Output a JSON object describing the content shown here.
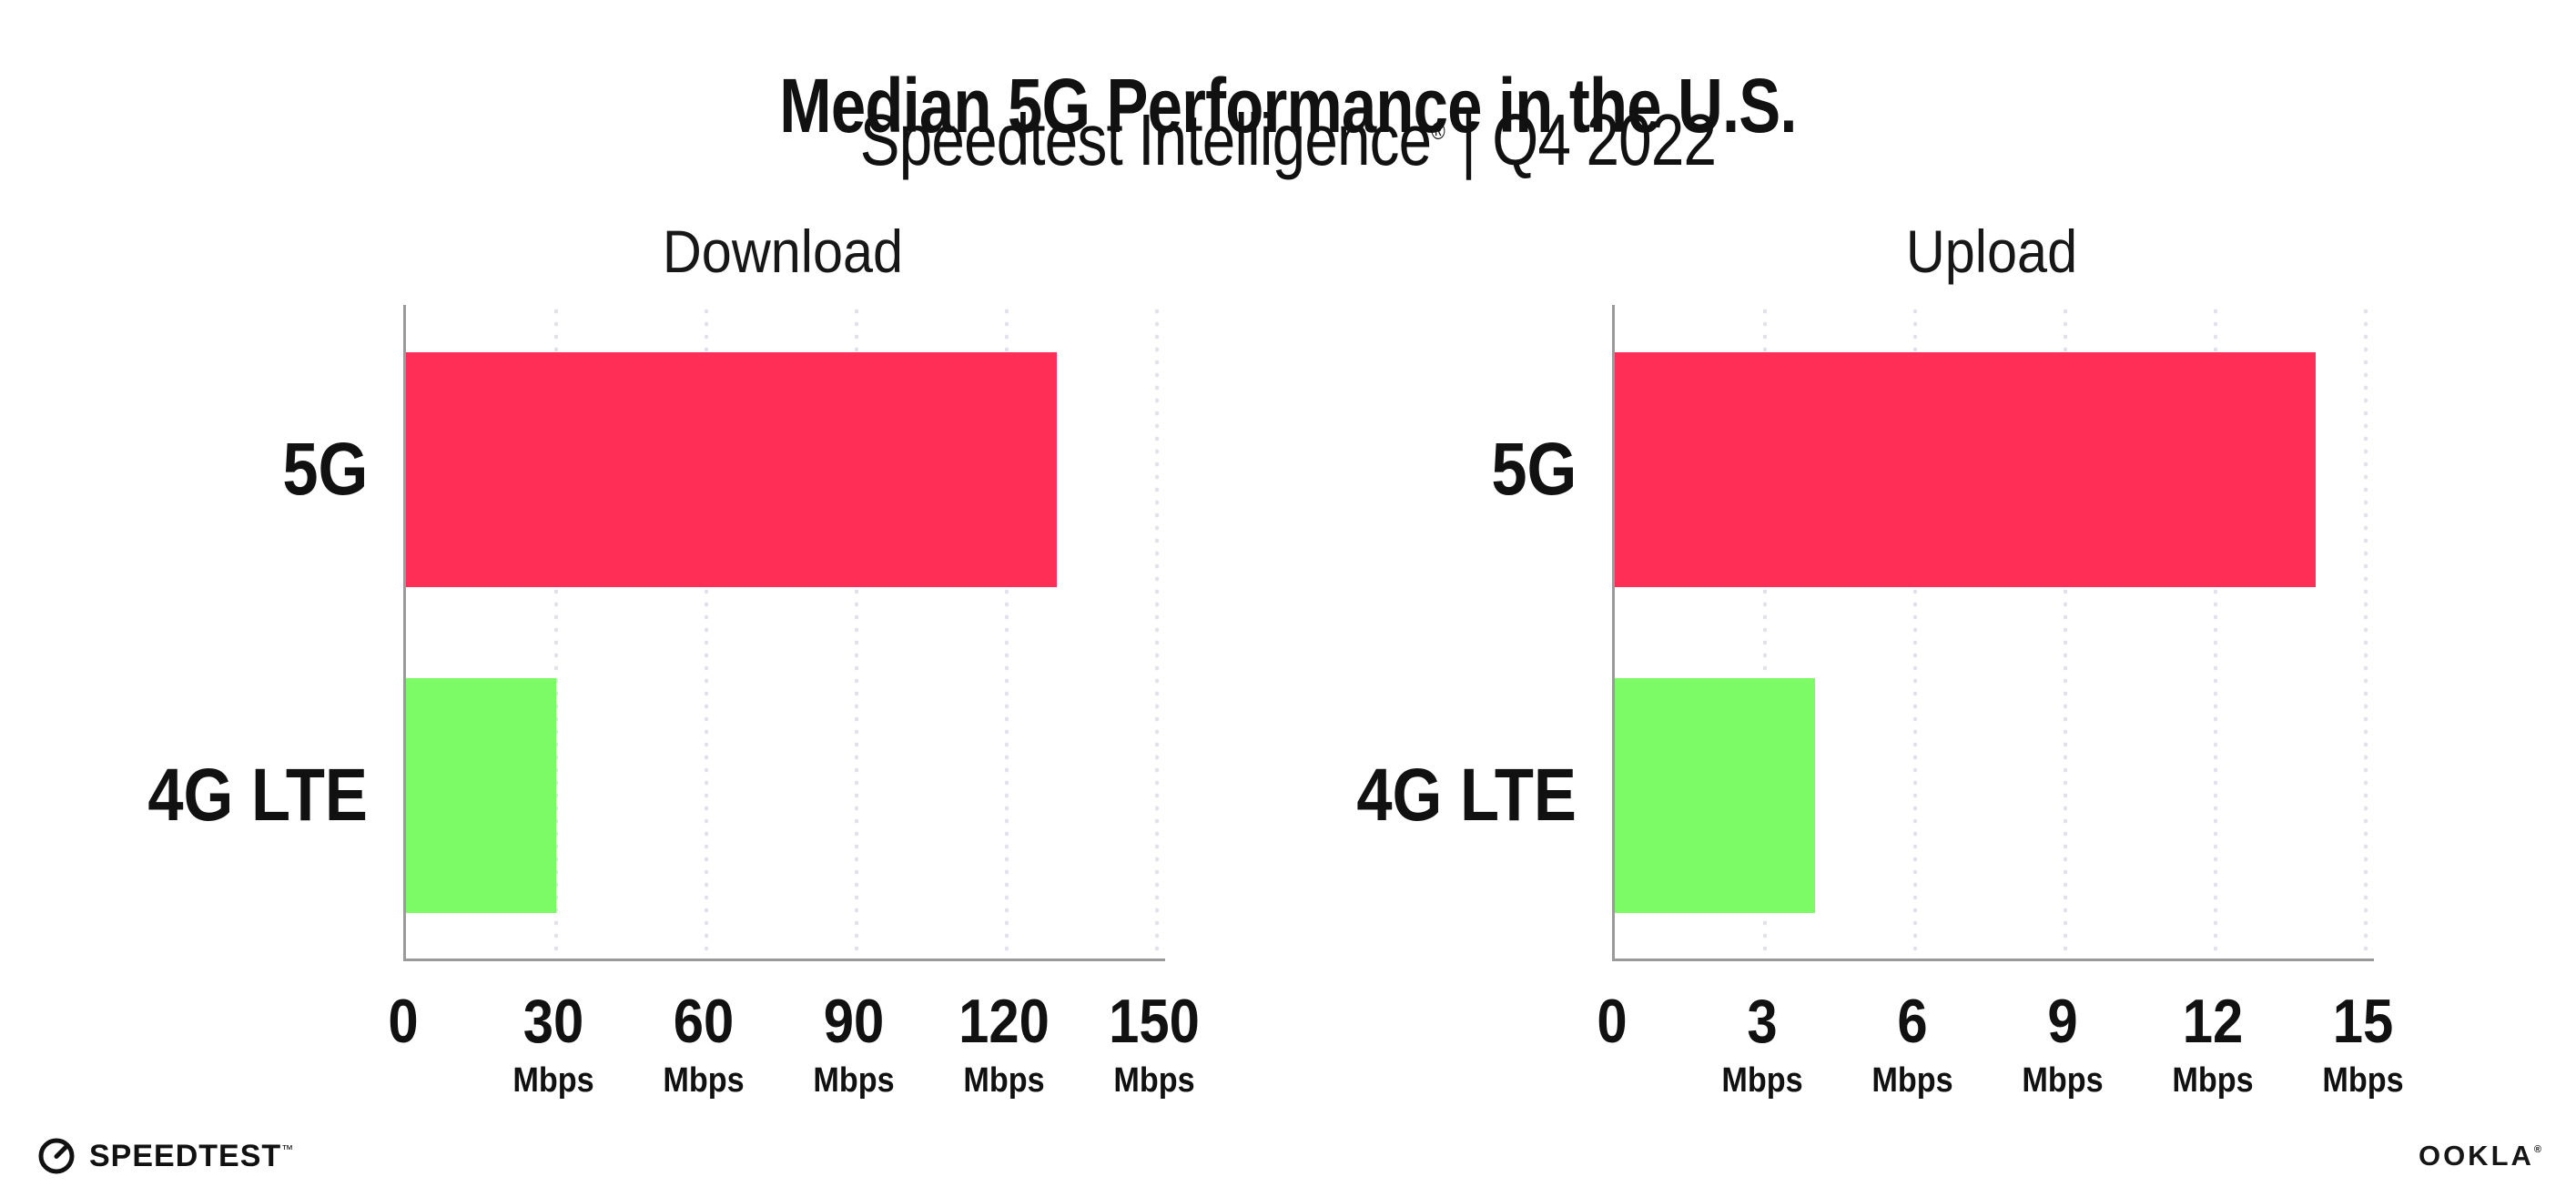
{
  "page": {
    "title": "Median 5G Performance in the U.S.",
    "subtitle": {
      "brand": "Speedtest Intelligence",
      "registered": "®",
      "separator": "|",
      "period": "Q4 2022"
    }
  },
  "colors": {
    "bar_5g": "#FF2E56",
    "bar_4g_lte": "#7DFB66",
    "axis": "#9a9a9a",
    "gridline": "#e0e1eb",
    "text": "#111111",
    "background": "#ffffff"
  },
  "chart_data": [
    {
      "type": "bar",
      "orientation": "horizontal",
      "title": "Download",
      "categories": [
        "5G",
        "4G LTE"
      ],
      "values": [
        130,
        30
      ],
      "unit": "Mbps",
      "xlim": [
        0,
        150
      ],
      "ticks": [
        0,
        30,
        60,
        90,
        120,
        150
      ],
      "tick_unit_label": "Mbps",
      "grid": "vertical-dotted",
      "legend": "none",
      "bar_colors": [
        "#FF2E56",
        "#7DFB66"
      ]
    },
    {
      "type": "bar",
      "orientation": "horizontal",
      "title": "Upload",
      "categories": [
        "5G",
        "4G LTE"
      ],
      "values": [
        14,
        4
      ],
      "unit": "Mbps",
      "xlim": [
        0,
        15
      ],
      "ticks": [
        0,
        3,
        6,
        9,
        12,
        15
      ],
      "tick_unit_label": "Mbps",
      "grid": "vertical-dotted",
      "legend": "none",
      "bar_colors": [
        "#FF2E56",
        "#7DFB66"
      ]
    }
  ],
  "footer": {
    "speedtest_logo_text": "SPEEDTEST",
    "speedtest_trademark": "™",
    "ookla_logo_text": "OOKLA",
    "ookla_registered": "®"
  }
}
